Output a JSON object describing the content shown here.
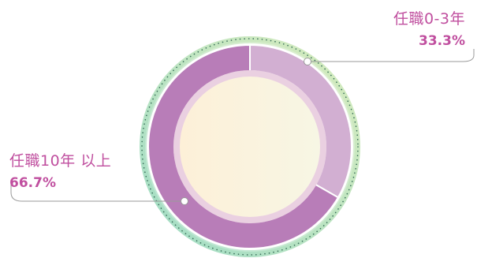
{
  "chart_data": {
    "type": "pie",
    "style": "donut",
    "slices": [
      {
        "label": "任職0-3年",
        "value": 33.3,
        "value_label": "33.3%",
        "color": "#d2afd2"
      },
      {
        "label": "任職10年 以上",
        "value": 66.7,
        "value_label": "66.7%",
        "color": "#b87db8"
      }
    ],
    "label_color": "#c04f9f",
    "center_fill": [
      "#fdf1dc",
      "#f8f6e2"
    ],
    "outer_ring_color": [
      "#9fdcc6",
      "#d4ebbf"
    ]
  }
}
